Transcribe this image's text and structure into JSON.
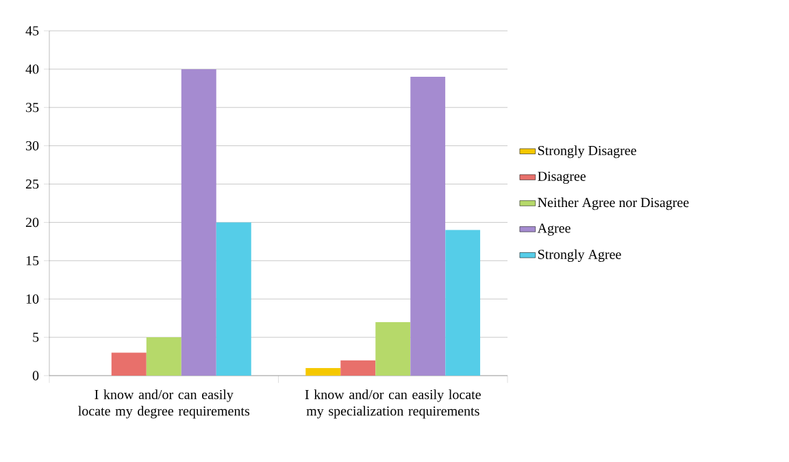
{
  "chart_data": {
    "type": "bar",
    "categories": [
      "I know and/or can easily locate my degree requirements",
      "I know and/or can easily locate my specialization requirements"
    ],
    "series": [
      {
        "name": "Strongly Disagree",
        "color": "#f5c800",
        "values": [
          0,
          1
        ]
      },
      {
        "name": "Disagree",
        "color": "#e8706b",
        "values": [
          3,
          2
        ]
      },
      {
        "name": "Neither Agree nor Disagree",
        "color": "#b6d96a",
        "values": [
          5,
          7
        ]
      },
      {
        "name": "Agree",
        "color": "#a58bd0",
        "values": [
          40,
          39
        ]
      },
      {
        "name": "Strongly Agree",
        "color": "#55cde8",
        "values": [
          20,
          19
        ]
      }
    ],
    "ylim": [
      0,
      45
    ],
    "yticks": [
      0,
      5,
      10,
      15,
      20,
      25,
      30,
      35,
      40,
      45
    ],
    "grid": "y",
    "legend": "right"
  }
}
